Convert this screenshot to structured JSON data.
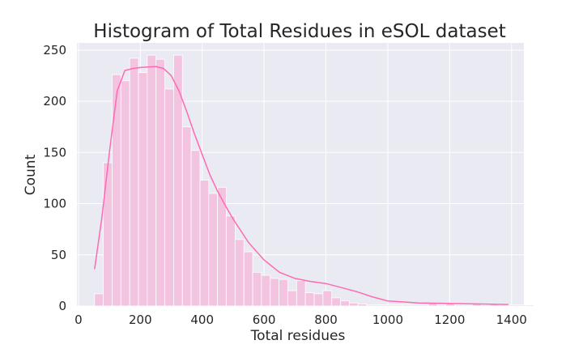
{
  "chart_data": {
    "type": "bar",
    "title": "Histogram of Total Residues in eSOL dataset",
    "xlabel": "Total residues",
    "ylabel": "Count",
    "xlim": [
      -5,
      1440
    ],
    "ylim": [
      0,
      257
    ],
    "xticks": [
      0,
      200,
      400,
      600,
      800,
      1000,
      1200,
      1400
    ],
    "yticks": [
      0,
      50,
      100,
      150,
      200,
      250
    ],
    "grid": true,
    "bin_width": 28.4,
    "bin_start": 52,
    "counts": [
      12,
      140,
      226,
      220,
      242,
      228,
      245,
      241,
      212,
      245,
      175,
      152,
      123,
      110,
      116,
      88,
      65,
      53,
      33,
      30,
      27,
      26,
      15,
      25,
      13,
      12,
      15,
      8,
      5,
      3,
      2,
      1,
      1,
      1,
      1,
      1,
      1,
      1,
      3,
      1,
      3,
      1,
      1,
      2,
      1,
      2,
      1,
      1,
      1,
      1
    ],
    "kde": {
      "x": [
        52,
        75,
        100,
        125,
        150,
        175,
        200,
        250,
        275,
        300,
        325,
        350,
        375,
        400,
        425,
        450,
        475,
        500,
        550,
        600,
        650,
        700,
        750,
        800,
        850,
        900,
        950,
        1000,
        1100,
        1200,
        1300,
        1390
      ],
      "y": [
        36,
        85,
        150,
        210,
        230,
        232,
        233,
        234,
        232,
        225,
        210,
        190,
        168,
        148,
        128,
        112,
        98,
        85,
        62,
        45,
        33,
        27,
        24,
        22,
        18,
        14,
        9,
        5,
        3,
        2.5,
        2,
        1.5
      ]
    },
    "colors": {
      "bar_fill": "#f2c4e0",
      "bar_edge": "#ffffff",
      "kde_line": "#ff69b4",
      "plot_background": "#eaeaf2",
      "grid": "#ffffff"
    }
  }
}
